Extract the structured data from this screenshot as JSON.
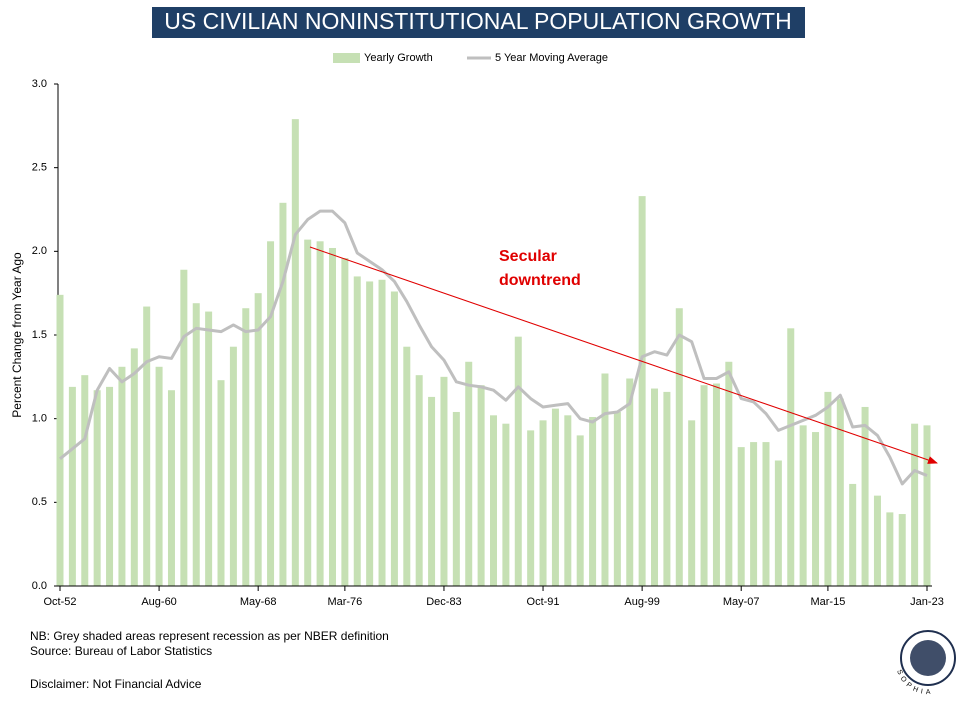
{
  "chart_data": {
    "type": "bar_line",
    "title": "US CIVILIAN NONINSTITUTIONAL POPULATION GROWTH",
    "y_label": "Percent Change from Year Ago",
    "categories": [
      "Oct-52",
      null,
      null,
      null,
      null,
      null,
      null,
      null,
      "Aug-60",
      null,
      null,
      null,
      null,
      null,
      null,
      null,
      "May-68",
      null,
      null,
      null,
      null,
      null,
      null,
      "Mar-76",
      null,
      null,
      null,
      null,
      null,
      null,
      null,
      "Dec-83",
      null,
      null,
      null,
      null,
      null,
      null,
      null,
      "Oct-91",
      null,
      null,
      null,
      null,
      null,
      null,
      null,
      "Aug-99",
      null,
      null,
      null,
      null,
      null,
      null,
      null,
      "May-07",
      null,
      null,
      null,
      null,
      null,
      null,
      "Mar-15",
      null,
      null,
      null,
      null,
      null,
      null,
      null,
      "Jan-23"
    ],
    "series": [
      {
        "name": "Yearly Growth",
        "color": "#c6e0b4",
        "kind": "bar",
        "values": [
          1.74,
          1.19,
          1.26,
          1.17,
          1.19,
          1.31,
          1.42,
          1.67,
          1.31,
          1.17,
          1.89,
          1.69,
          1.64,
          1.23,
          1.43,
          1.66,
          1.75,
          2.06,
          2.29,
          2.79,
          2.07,
          2.06,
          2.02,
          1.96,
          1.85,
          1.82,
          1.83,
          1.76,
          1.43,
          1.26,
          1.13,
          1.25,
          1.04,
          1.34,
          1.2,
          1.02,
          0.97,
          1.49,
          0.93,
          0.99,
          1.06,
          1.02,
          0.9,
          1.01,
          1.27,
          1.04,
          1.24,
          2.33,
          1.18,
          1.16,
          1.66,
          0.99,
          1.2,
          1.21,
          1.34,
          0.83,
          0.86,
          0.86,
          0.75,
          1.54,
          0.96,
          0.92,
          1.16,
          1.12,
          0.61,
          1.07,
          0.54,
          0.44,
          0.43,
          0.97,
          0.96
        ]
      },
      {
        "name": "5 Year Moving Average",
        "color": "#bfbfbf",
        "kind": "line",
        "values": [
          0.76,
          0.82,
          0.88,
          1.17,
          1.3,
          1.22,
          1.27,
          1.34,
          1.37,
          1.36,
          1.49,
          1.54,
          1.53,
          1.52,
          1.56,
          1.52,
          1.53,
          1.61,
          1.82,
          2.1,
          2.19,
          2.24,
          2.24,
          2.17,
          1.99,
          1.94,
          1.89,
          1.82,
          1.7,
          1.56,
          1.43,
          1.35,
          1.22,
          1.2,
          1.19,
          1.17,
          1.11,
          1.19,
          1.12,
          1.07,
          1.08,
          1.09,
          1.0,
          0.98,
          1.03,
          1.04,
          1.09,
          1.37,
          1.4,
          1.38,
          1.5,
          1.46,
          1.24,
          1.24,
          1.28,
          1.12,
          1.1,
          1.03,
          0.93,
          0.96,
          0.99,
          1.02,
          1.07,
          1.14,
          0.95,
          0.96,
          0.9,
          0.77,
          0.61,
          0.69,
          0.66
        ]
      }
    ],
    "ylim": [
      0,
      3
    ],
    "yticks": [
      {
        "value": 0,
        "label": "0.0"
      },
      0.5,
      {
        "value": 1,
        "label": "1.0"
      },
      1.5,
      {
        "value": 2,
        "label": "2.0"
      },
      2.5,
      {
        "value": 3,
        "label": "3.0"
      }
    ],
    "annotation_lines": [
      "Secular",
      "downtrend"
    ],
    "annotation_color": "#e00000",
    "notes": [
      "NB: Grey shaded areas represent recession as per NBER definition",
      "Source: Bureau of Labor Statistics"
    ],
    "disclaimer": "Disclaimer: Not Financial Advice",
    "logo_text": "SOPHIA"
  }
}
